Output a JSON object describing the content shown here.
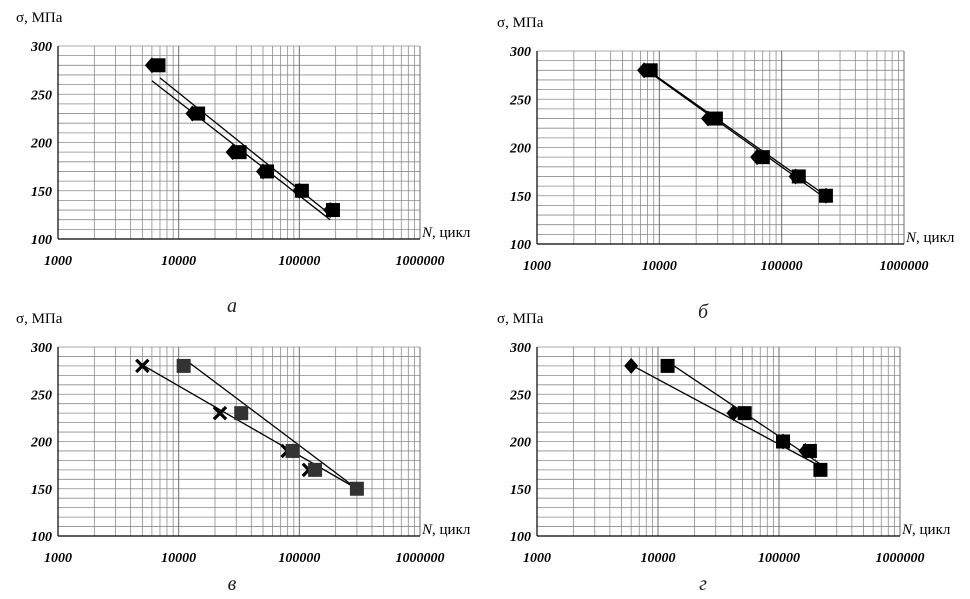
{
  "chart_data": [
    {
      "type": "scatter",
      "panel_label": "а",
      "ylabel": "σ, МПа",
      "xlabel_var": "N",
      "xlabel_unit": ", цикл",
      "x_scale": "log",
      "xlim": [
        1000,
        1000000
      ],
      "ylim": [
        100,
        300
      ],
      "x_ticks": [
        "1000",
        "10000",
        "100000",
        "1000000"
      ],
      "y_ticks": [
        "100",
        "150",
        "200",
        "250",
        "300"
      ],
      "grid": true,
      "series": [
        {
          "marker": "diamond",
          "x": [
            6000,
            13000,
            28000,
            50000,
            100000,
            180000
          ],
          "y": [
            280,
            230,
            190,
            170,
            150,
            130
          ],
          "trend": [
            [
              6000,
              264
            ],
            [
              180000,
              120
            ]
          ]
        },
        {
          "marker": "square",
          "x": [
            6800,
            14500,
            32000,
            54000,
            105000,
            190000
          ],
          "y": [
            280,
            230,
            190,
            170,
            150,
            130
          ],
          "trend": [
            [
              7000,
              267
            ],
            [
              190000,
              123
            ]
          ]
        }
      ]
    },
    {
      "type": "scatter",
      "panel_label": "б",
      "ylabel": "σ, МПа",
      "xlabel_var": "N",
      "xlabel_unit": ", цикл",
      "x_scale": "log",
      "xlim": [
        1000,
        1000000
      ],
      "ylim": [
        100,
        300
      ],
      "x_ticks": [
        "1000",
        "10000",
        "100000",
        "1000000"
      ],
      "y_ticks": [
        "100",
        "150",
        "200",
        "250",
        "300"
      ],
      "grid": true,
      "series": [
        {
          "marker": "diamond",
          "x": [
            7500,
            25000,
            63000,
            130000,
            230000
          ],
          "y": [
            280,
            230,
            190,
            170,
            150
          ],
          "trend": [
            [
              7500,
              282
            ],
            [
              230000,
              147
            ]
          ]
        },
        {
          "marker": "square",
          "x": [
            8500,
            29000,
            70000,
            138000,
            230000
          ],
          "y": [
            280,
            230,
            190,
            170,
            150
          ],
          "trend": [
            [
              8500,
              278
            ],
            [
              230000,
              150
            ]
          ]
        }
      ]
    },
    {
      "type": "scatter",
      "panel_label": "в",
      "ylabel": "σ, МПа",
      "xlabel_var": "N",
      "xlabel_unit": ", цикл",
      "x_scale": "log",
      "xlim": [
        1000,
        1000000
      ],
      "ylim": [
        100,
        300
      ],
      "x_ticks": [
        "1000",
        "10000",
        "100000",
        "1000000"
      ],
      "y_ticks": [
        "100",
        "150",
        "200",
        "250",
        "300"
      ],
      "grid": true,
      "series": [
        {
          "marker": "cross",
          "x": [
            5000,
            22000,
            80000,
            120000
          ],
          "y": [
            280,
            230,
            190,
            170
          ],
          "trend": [
            [
              5000,
              281
            ],
            [
              300000,
              150
            ]
          ]
        },
        {
          "marker": "square",
          "x": [
            11000,
            33000,
            88000,
            135000,
            300000
          ],
          "y": [
            280,
            230,
            190,
            170,
            150
          ],
          "trend": [
            [
              11500,
              286
            ],
            [
              300000,
              150
            ]
          ]
        }
      ]
    },
    {
      "type": "scatter",
      "panel_label": "г",
      "ylabel": "σ, МПа",
      "xlabel_var": "N",
      "xlabel_unit": ", цикл",
      "x_scale": "log",
      "xlim": [
        1000,
        1000000
      ],
      "ylim": [
        100,
        300
      ],
      "x_ticks": [
        "1000",
        "10000",
        "100000",
        "1000000"
      ],
      "y_ticks": [
        "100",
        "150",
        "200",
        "250",
        "300"
      ],
      "grid": true,
      "series": [
        {
          "marker": "diamond",
          "x": [
            6000,
            42000,
            108000,
            165000
          ],
          "y": [
            280,
            230,
            200,
            190
          ],
          "trend": [
            [
              6000,
              281
            ],
            [
              210000,
              175
            ]
          ]
        },
        {
          "marker": "square",
          "x": [
            12000,
            52000,
            108000,
            180000,
            220000
          ],
          "y": [
            280,
            230,
            200,
            190,
            170
          ],
          "trend": [
            [
              12500,
              283
            ],
            [
              215000,
              177
            ]
          ]
        }
      ]
    }
  ]
}
